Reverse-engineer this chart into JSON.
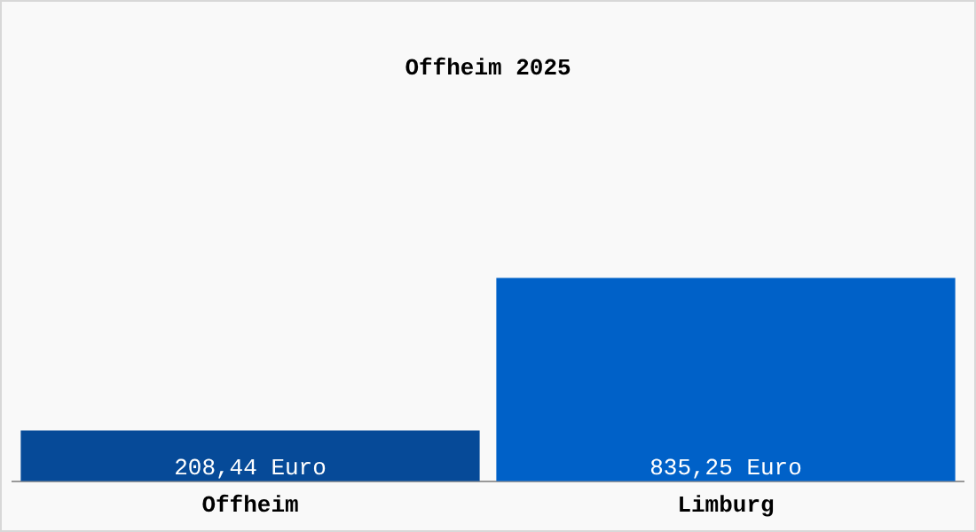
{
  "chart_data": {
    "type": "bar",
    "title": "Offheim 2025",
    "categories": [
      "Offheim",
      "Limburg"
    ],
    "values": [
      208.44,
      835.25
    ],
    "colors": [
      "#064a98",
      "#0061c8"
    ],
    "value_labels": [
      "208,44 Euro",
      "835,25 Euro"
    ],
    "grid": false,
    "legend": false
  }
}
